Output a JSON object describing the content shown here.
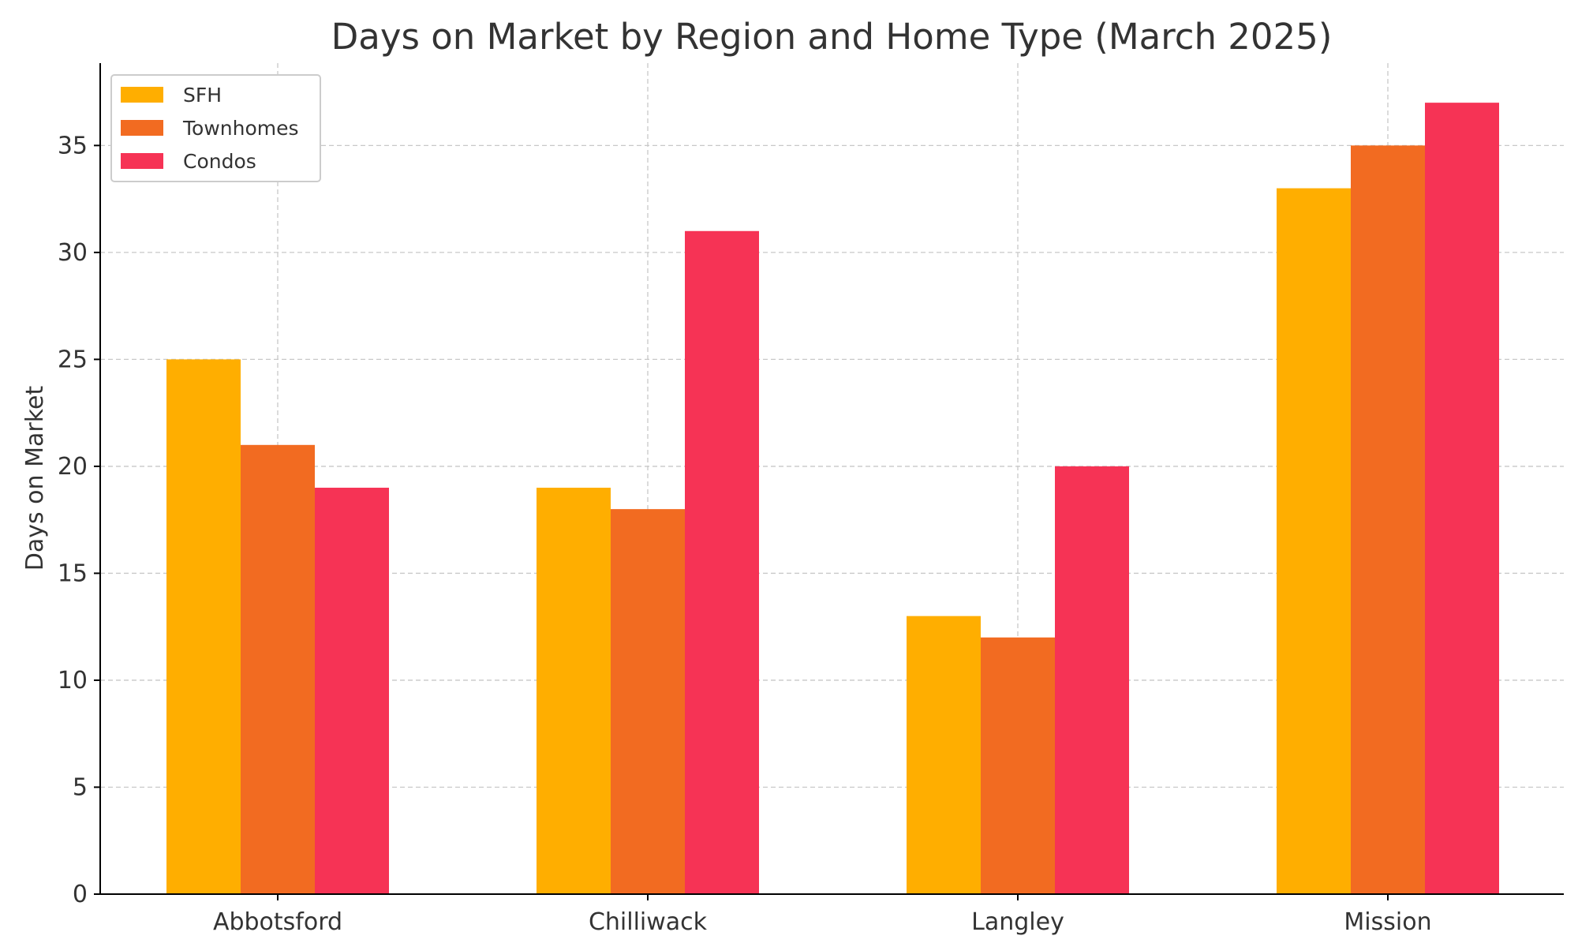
{
  "chart_data": {
    "type": "bar",
    "title": "Days on Market by Region and Home Type (March 2025)",
    "xlabel": "",
    "ylabel": "Days on Market",
    "categories": [
      "Abbotsford",
      "Chilliwack",
      "Langley",
      "Mission"
    ],
    "series": [
      {
        "name": "SFH",
        "color": "#FFAE00",
        "values": [
          25,
          19,
          13,
          33
        ]
      },
      {
        "name": "Townhomes",
        "color": "#F26B21",
        "values": [
          21,
          18,
          12,
          35
        ]
      },
      {
        "name": "Condos",
        "color": "#F63355",
        "values": [
          19,
          31,
          20,
          37
        ]
      }
    ],
    "ylim": [
      0,
      38.85
    ],
    "yticks": [
      0,
      5,
      10,
      15,
      20,
      25,
      30,
      35
    ],
    "grid": true,
    "legend_position": "top-left"
  }
}
